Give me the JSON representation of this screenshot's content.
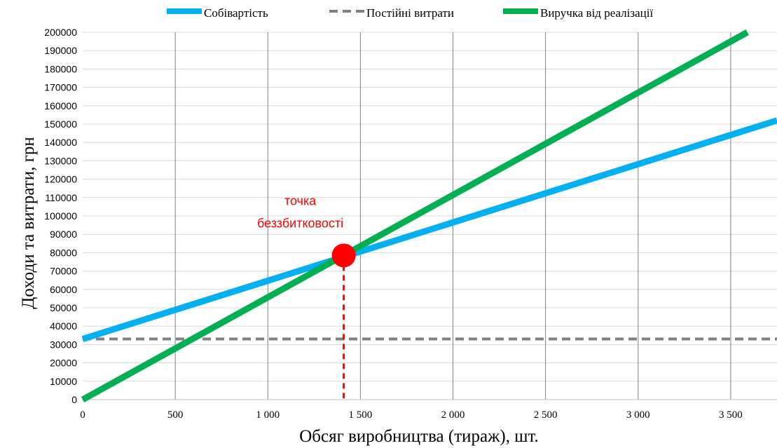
{
  "chart_data": {
    "type": "line",
    "xlabel": "Обсяг виробництва (тираж), шт.",
    "ylabel": "Доходи та витрати, грн",
    "xlim": [
      0,
      3750
    ],
    "ylim": [
      0,
      200000
    ],
    "x_ticks": [
      0,
      500,
      1000,
      1500,
      2000,
      2500,
      3000,
      3500
    ],
    "x_tick_labels": [
      "0",
      "500",
      "1 000",
      "1 500",
      "2 000",
      "2 500",
      "3 000",
      "3 500"
    ],
    "y_ticks": [
      0,
      10000,
      20000,
      30000,
      40000,
      50000,
      60000,
      70000,
      80000,
      90000,
      100000,
      110000,
      120000,
      130000,
      140000,
      150000,
      160000,
      170000,
      180000,
      190000,
      200000
    ],
    "y_tick_labels": [
      "0",
      "10000",
      "20000",
      "30000",
      "40000",
      "50000",
      "60000",
      "70000",
      "80000",
      "90000",
      "100000",
      "110000",
      "120000",
      "130000",
      "140000",
      "150000",
      "160000",
      "170000",
      "180000",
      "190000",
      "200000"
    ],
    "grid": {
      "vertical": true,
      "horizontal": true
    },
    "legend_position": "top",
    "series": [
      {
        "name": "Собівартість",
        "color": "#00b0f0",
        "style": "solid",
        "x": [
          0,
          3750
        ],
        "y": [
          33000,
          152000
        ]
      },
      {
        "name": "Постійні витрати",
        "color": "#808080",
        "style": "dashed",
        "x": [
          0,
          3750
        ],
        "y": [
          33000,
          33000
        ]
      },
      {
        "name": "Виручка від реалізації",
        "color": "#00b050",
        "style": "solid",
        "x": [
          0,
          3590
        ],
        "y": [
          0,
          200000
        ]
      }
    ],
    "annotation": {
      "line1": "точка",
      "line2": "беззбитковості",
      "x": 1410,
      "y": 78500,
      "color": "#ff0000"
    }
  }
}
